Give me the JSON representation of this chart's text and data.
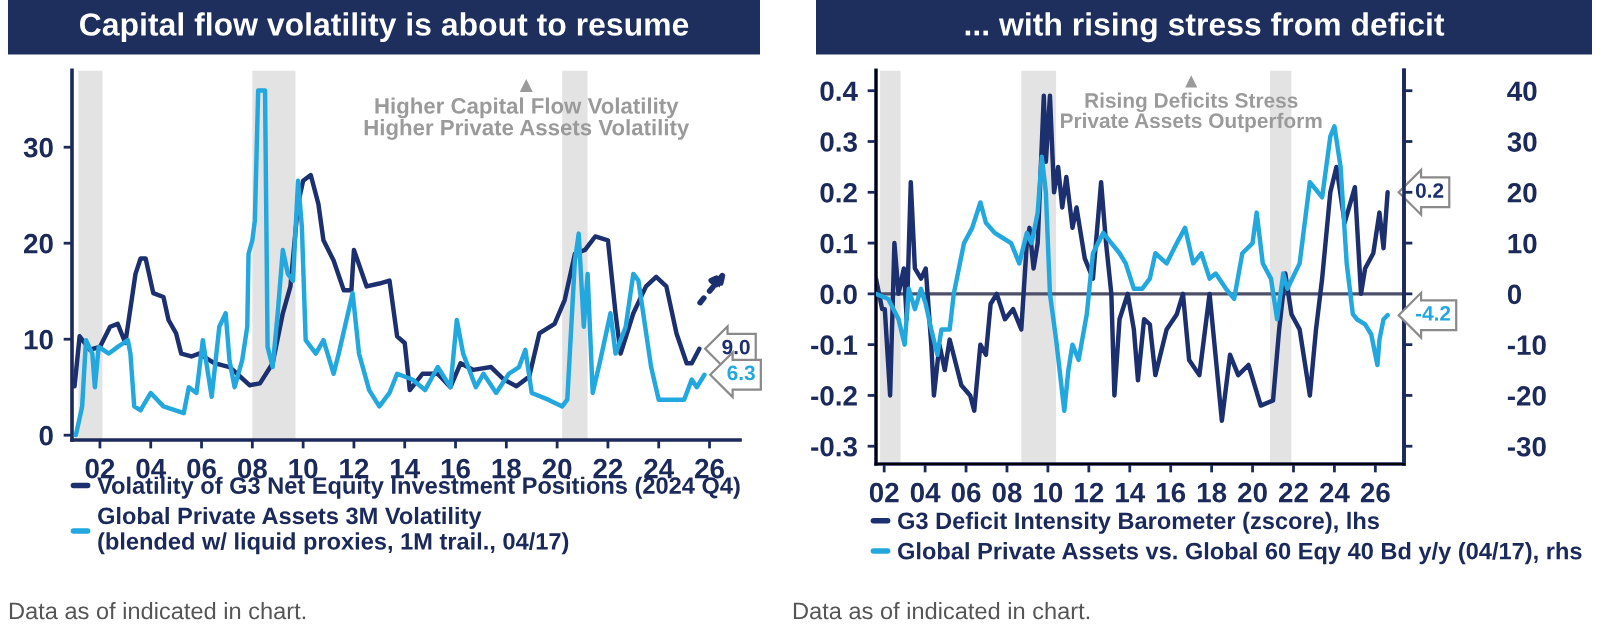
{
  "chart_data": [
    {
      "type": "line",
      "title": "Capital flow volatility is about to resume",
      "xlim": [
        2000.9,
        2027.2
      ],
      "ylim": [
        -0.5,
        38
      ],
      "yticks": [
        0,
        10,
        20,
        30
      ],
      "xticks": [
        {
          "value": 2002,
          "label": "02"
        },
        {
          "value": 2004,
          "label": "04"
        },
        {
          "value": 2006,
          "label": "06"
        },
        {
          "value": 2008,
          "label": "08"
        },
        {
          "value": 2010,
          "label": "10"
        },
        {
          "value": 2012,
          "label": "12"
        },
        {
          "value": 2014,
          "label": "14"
        },
        {
          "value": 2016,
          "label": "16"
        },
        {
          "value": 2018,
          "label": "18"
        },
        {
          "value": 2020,
          "label": "20"
        },
        {
          "value": 2022,
          "label": "22"
        },
        {
          "value": 2024,
          "label": "24"
        },
        {
          "value": 2026,
          "label": "26"
        }
      ],
      "bands": [
        {
          "axis": "x",
          "from": 2001.15,
          "to": 2002.1,
          "color": "#e3e3e3"
        },
        {
          "axis": "x",
          "from": 2008.0,
          "to": 2009.7,
          "color": "#e3e3e3"
        },
        {
          "axis": "x",
          "from": 2020.2,
          "to": 2021.2,
          "color": "#e3e3e3"
        }
      ],
      "legend": "bottom",
      "annotations": [
        "▲\nHigher Capital Flow Volatility\nHigher Private Assets Volatility",
        "Data as of indicated in chart."
      ],
      "series": [
        {
          "name": "Volatility of G3 Net Equity Investment Positions (2024 Q4)",
          "color": "#1c2f6e",
          "x": [
            2001.0,
            2001.2,
            2001.6,
            2002.0,
            2002.4,
            2002.7,
            2003.0,
            2003.4,
            2003.6,
            2003.8,
            2004.1,
            2004.5,
            2004.7,
            2005.0,
            2005.2,
            2005.6,
            2005.9,
            2006.5,
            2007.1,
            2007.4,
            2007.9,
            2008.3,
            2008.8,
            2009.2,
            2009.5,
            2009.8,
            2010.0,
            2010.3,
            2010.6,
            2010.8,
            2011.2,
            2011.6,
            2011.9,
            2012.0,
            2012.5,
            2013.0,
            2013.4,
            2013.7,
            2014.0,
            2014.2,
            2014.7,
            2015.3,
            2015.8,
            2016.2,
            2016.7,
            2017.4,
            2017.9,
            2018.4,
            2018.9,
            2019.3,
            2019.9,
            2020.3,
            2020.7,
            2021.1,
            2021.5,
            2022.0,
            2022.3,
            2022.5,
            2023.0,
            2023.5,
            2023.9,
            2024.3,
            2024.7,
            2025.1,
            2025.3,
            2025.6
          ],
          "values": [
            5.1,
            10.3,
            8.9,
            9.2,
            11.3,
            11.6,
            9.6,
            16.8,
            18.4,
            18.4,
            14.8,
            14.4,
            12,
            10.6,
            8.5,
            8.2,
            8.5,
            7.5,
            7.1,
            6.4,
            5.2,
            5.4,
            7.5,
            12.7,
            15.5,
            24.1,
            26.5,
            27.1,
            24.1,
            20.3,
            18.2,
            15.1,
            15.1,
            19.3,
            15.5,
            15.8,
            16.1,
            10.3,
            9.6,
            4.7,
            6.4,
            6.4,
            5.0,
            7.5,
            6.8,
            7.1,
            5.8,
            5.1,
            6.1,
            10.6,
            11.6,
            14.1,
            18.9,
            19.3,
            20.7,
            20.3,
            12.7,
            8.5,
            12.7,
            15.5,
            16.5,
            15.5,
            10.6,
            7.5,
            7.5,
            9.0
          ],
          "value_labels": [
            null,
            null,
            null,
            null,
            null,
            null,
            null,
            null,
            null,
            null,
            null,
            null,
            null,
            null,
            null,
            null,
            null,
            null,
            null,
            null,
            null,
            null,
            null,
            null,
            null,
            null,
            null,
            null,
            null,
            null,
            null,
            null,
            null,
            null,
            null,
            null,
            null,
            null,
            null,
            null,
            null,
            null,
            null,
            null,
            null,
            null,
            null,
            null,
            null,
            null,
            null,
            null,
            null,
            null,
            null,
            null,
            null,
            null,
            null,
            null,
            null,
            null,
            null,
            null,
            null,
            "9.0"
          ]
        },
        {
          "name": "Global Private Assets 3M Volatility\n(blended w/ liquid proxies, 1M trail., 04/17)",
          "color": "#22a7df",
          "x": [
            2001.05,
            2001.3,
            2001.45,
            2001.7,
            2001.8,
            2001.95,
            2002.35,
            2002.7,
            2003.1,
            2003.2,
            2003.35,
            2003.6,
            2004.0,
            2004.5,
            2005.3,
            2005.5,
            2005.8,
            2006.05,
            2006.4,
            2006.7,
            2006.95,
            2007.1,
            2007.3,
            2007.6,
            2007.8,
            2007.85,
            2008.0,
            2008.1,
            2008.23,
            2008.5,
            2008.6,
            2008.8,
            2009.0,
            2009.2,
            2009.4,
            2009.6,
            2009.8,
            2009.95,
            2010.1,
            2010.5,
            2010.8,
            2011.2,
            2011.4,
            2011.95,
            2012.2,
            2012.6,
            2013.0,
            2013.4,
            2013.7,
            2014.3,
            2014.8,
            2015.3,
            2015.8,
            2016.05,
            2016.3,
            2016.8,
            2017.1,
            2017.6,
            2018.1,
            2018.5,
            2018.75,
            2019.0,
            2019.65,
            2020.2,
            2020.4,
            2020.7,
            2020.85,
            2021.05,
            2021.2,
            2021.4,
            2021.7,
            2022.1,
            2022.3,
            2022.7,
            2023.0,
            2023.2,
            2023.7,
            2024.0,
            2024.5,
            2025.0,
            2025.3,
            2025.5,
            2025.8
          ],
          "values": [
            0,
            3,
            9.9,
            8.5,
            5,
            9.2,
            8.5,
            9.2,
            9.9,
            8.5,
            3,
            2.6,
            4.4,
            3,
            2.3,
            5,
            4.4,
            9.9,
            4,
            11.3,
            12.7,
            7.8,
            5,
            7.8,
            11.3,
            18.9,
            20.3,
            22.4,
            35.9,
            35.9,
            9.2,
            7.1,
            12.7,
            19.3,
            16.8,
            16.1,
            26.5,
            21.7,
            9.9,
            8.5,
            9.9,
            6.4,
            8.5,
            14.8,
            8.5,
            4.7,
            3,
            4.4,
            6.4,
            5.8,
            4.7,
            7.1,
            5,
            12,
            8.5,
            5,
            6.4,
            4.4,
            6.4,
            7.1,
            8.9,
            4.4,
            3.7,
            3,
            3.7,
            18.2,
            21,
            11.3,
            16.8,
            4.4,
            7.8,
            12.7,
            8.5,
            11.3,
            16.8,
            16.1,
            7.1,
            3.7,
            3.7,
            3.7,
            5.8,
            5,
            6.3
          ],
          "value_labels": [
            null,
            null,
            null,
            null,
            null,
            null,
            null,
            null,
            null,
            null,
            null,
            null,
            null,
            null,
            null,
            null,
            null,
            null,
            null,
            null,
            null,
            null,
            null,
            null,
            null,
            null,
            null,
            null,
            null,
            null,
            null,
            null,
            null,
            null,
            null,
            null,
            null,
            null,
            null,
            null,
            null,
            null,
            null,
            null,
            null,
            null,
            null,
            null,
            null,
            null,
            null,
            null,
            null,
            null,
            null,
            null,
            null,
            null,
            null,
            null,
            null,
            null,
            null,
            null,
            null,
            null,
            null,
            null,
            null,
            null,
            null,
            null,
            null,
            null,
            null,
            null,
            null,
            null,
            null,
            null,
            null,
            null,
            "6.3"
          ]
        }
      ]
    },
    {
      "type": "line",
      "title": "... with rising stress from deficit",
      "xlim": [
        2001.6,
        2027.4
      ],
      "ylim": [
        -0.335,
        0.44
      ],
      "yticks": [
        -0.3,
        -0.2,
        -0.1,
        {
          "value": 0,
          "label": "0.0"
        },
        0.1,
        0.2,
        0.3,
        0.4
      ],
      "y2lim": [
        -33.5,
        44
      ],
      "y2ticks": [
        -30,
        -20,
        -10,
        0,
        10,
        20,
        30,
        40
      ],
      "xticks": [
        {
          "value": 2002,
          "label": "02"
        },
        {
          "value": 2004,
          "label": "04"
        },
        {
          "value": 2006,
          "label": "06"
        },
        {
          "value": 2008,
          "label": "08"
        },
        {
          "value": 2010,
          "label": "10"
        },
        {
          "value": 2012,
          "label": "12"
        },
        {
          "value": 2014,
          "label": "14"
        },
        {
          "value": 2016,
          "label": "16"
        },
        {
          "value": 2018,
          "label": "18"
        },
        {
          "value": 2020,
          "label": "20"
        },
        {
          "value": 2022,
          "label": "22"
        },
        {
          "value": 2024,
          "label": "24"
        },
        {
          "value": 2026,
          "label": "26"
        }
      ],
      "bands": [
        {
          "axis": "x",
          "from": 2001.8,
          "to": 2002.8,
          "color": "#e3e3e3"
        },
        {
          "axis": "x",
          "from": 2008.7,
          "to": 2010.4,
          "color": "#e3e3e3"
        },
        {
          "axis": "x",
          "from": 2020.85,
          "to": 2021.9,
          "color": "#e3e3e3"
        }
      ],
      "ref_lines": [
        {
          "axis": "y",
          "value": 0,
          "color": "#4d5068"
        }
      ],
      "legend": "bottom",
      "annotations": [
        "▲\nRising Deficits Stress\nPrivate Assets Outperform",
        "Data as of indicated in chart."
      ],
      "series": [
        {
          "name": "G3 Deficit Intensity Barometer (zscore), lhs",
          "color": "#1c2f6e",
          "x": [
            2001.6,
            2001.9,
            2002.03,
            2002.29,
            2002.5,
            2002.7,
            2002.96,
            2003.1,
            2003.3,
            2003.5,
            2003.8,
            2004.03,
            2004.3,
            2004.43,
            2004.7,
            2004.96,
            2005.2,
            2005.77,
            2006.2,
            2006.4,
            2006.7,
            2006.97,
            2007.2,
            2007.5,
            2007.9,
            2008.3,
            2008.7,
            2008.97,
            2009.1,
            2009.3,
            2009.5,
            2009.8,
            2009.9,
            2010.1,
            2010.3,
            2010.5,
            2010.7,
            2010.9,
            2011.2,
            2011.4,
            2011.8,
            2012.2,
            2012.6,
            2012.84,
            2013.1,
            2013.25,
            2013.5,
            2013.9,
            2014.2,
            2014.4,
            2014.7,
            2014.98,
            2015.25,
            2015.8,
            2016.3,
            2016.6,
            2016.9,
            2017.4,
            2017.9,
            2018.5,
            2018.9,
            2019.3,
            2019.8,
            2020.4,
            2021.0,
            2021.3,
            2021.6,
            2021.9,
            2022.3,
            2022.8,
            2023.1,
            2023.4,
            2023.8,
            2024.1,
            2024.5,
            2025.0,
            2025.3,
            2025.5,
            2025.9,
            2026.2,
            2026.4,
            2026.6
          ],
          "values": [
            0.03,
            -0.03,
            -0.03,
            -0.2,
            0.1,
            0.0,
            0.05,
            -0.05,
            0.22,
            0.05,
            0.03,
            0.05,
            -0.1,
            -0.2,
            -0.1,
            -0.15,
            -0.09,
            -0.18,
            -0.2,
            -0.23,
            -0.1,
            -0.12,
            -0.02,
            0.0,
            -0.05,
            -0.03,
            -0.07,
            0.1,
            0.13,
            0.05,
            0.1,
            0.39,
            0.26,
            0.39,
            0.2,
            0.25,
            0.17,
            0.23,
            0.13,
            0.17,
            0.07,
            0.03,
            0.22,
            0.1,
            0.0,
            -0.2,
            -0.05,
            0.0,
            -0.07,
            -0.17,
            -0.05,
            -0.06,
            -0.16,
            -0.07,
            -0.04,
            0.0,
            -0.13,
            -0.16,
            0.0,
            -0.25,
            -0.12,
            -0.16,
            -0.14,
            -0.22,
            -0.21,
            -0.07,
            0.04,
            -0.04,
            -0.07,
            -0.2,
            -0.07,
            0.03,
            0.2,
            0.25,
            0.14,
            0.21,
            0.0,
            0.05,
            0.08,
            0.16,
            0.09,
            0.2
          ],
          "value_labels": [
            null,
            null,
            null,
            null,
            null,
            null,
            null,
            null,
            null,
            null,
            null,
            null,
            null,
            null,
            null,
            null,
            null,
            null,
            null,
            null,
            null,
            null,
            null,
            null,
            null,
            null,
            null,
            null,
            null,
            null,
            null,
            null,
            null,
            null,
            null,
            null,
            null,
            null,
            null,
            null,
            null,
            null,
            null,
            null,
            null,
            null,
            null,
            null,
            null,
            null,
            null,
            null,
            null,
            null,
            null,
            null,
            null,
            null,
            null,
            null,
            null,
            null,
            null,
            null,
            null,
            null,
            null,
            null,
            null,
            null,
            null,
            null,
            null,
            null,
            null,
            null,
            null,
            null,
            null,
            null,
            null,
            "0.2"
          ]
        },
        {
          "name": "Global Private Assets vs. Global 60 Eqy 40 Bd y/y (04/17), rhs",
          "color": "#22a7df",
          "axis": "y2",
          "x": [
            2001.6,
            2002.2,
            2002.7,
            2003.0,
            2003.2,
            2003.5,
            2003.8,
            2004.03,
            2004.3,
            2004.6,
            2004.8,
            2005.2,
            2005.4,
            2005.9,
            2006.3,
            2006.7,
            2006.97,
            2007.4,
            2007.8,
            2008.2,
            2008.6,
            2008.97,
            2009.2,
            2009.5,
            2009.7,
            2009.9,
            2010.1,
            2010.4,
            2010.8,
            2011.0,
            2011.2,
            2011.5,
            2011.9,
            2012.2,
            2012.7,
            2013.1,
            2013.5,
            2013.8,
            2014.2,
            2014.6,
            2014.98,
            2015.25,
            2015.8,
            2016.3,
            2016.7,
            2017.1,
            2017.5,
            2017.9,
            2018.2,
            2018.7,
            2019.1,
            2019.5,
            2020.0,
            2020.2,
            2020.5,
            2020.9,
            2021.2,
            2021.5,
            2021.7,
            2022.3,
            2022.8,
            2023.4,
            2023.8,
            2024.0,
            2024.3,
            2024.6,
            2024.9,
            2025.1,
            2025.5,
            2025.8,
            2026.1,
            2026.2,
            2026.4,
            2026.6
          ],
          "values": [
            0,
            -1,
            -5,
            -10,
            1,
            -3,
            1,
            -2,
            -7,
            -12,
            -7,
            -7,
            0,
            10,
            13,
            18,
            14,
            12,
            11,
            10,
            6,
            12,
            10,
            16,
            27,
            20,
            0,
            -9,
            -23,
            -15,
            -10,
            -13,
            -4,
            8,
            12,
            10,
            8,
            6,
            1,
            1,
            3,
            8,
            6,
            10,
            13,
            6,
            8,
            3,
            4,
            1,
            -1,
            8,
            10,
            16,
            6,
            3,
            -5,
            4,
            1,
            6,
            22,
            19,
            31,
            33,
            25,
            6,
            -4,
            -5,
            -6,
            -8,
            -14,
            -9,
            -5,
            -4.2
          ],
          "value_labels": [
            null,
            null,
            null,
            null,
            null,
            null,
            null,
            null,
            null,
            null,
            null,
            null,
            null,
            null,
            null,
            null,
            null,
            null,
            null,
            null,
            null,
            null,
            null,
            null,
            null,
            null,
            null,
            null,
            null,
            null,
            null,
            null,
            null,
            null,
            null,
            null,
            null,
            null,
            null,
            null,
            null,
            null,
            null,
            null,
            null,
            null,
            null,
            null,
            null,
            null,
            null,
            null,
            null,
            null,
            null,
            null,
            null,
            null,
            null,
            null,
            null,
            null,
            null,
            null,
            null,
            null,
            null,
            null,
            null,
            null,
            null,
            null,
            null,
            "-4.2"
          ]
        }
      ]
    }
  ]
}
